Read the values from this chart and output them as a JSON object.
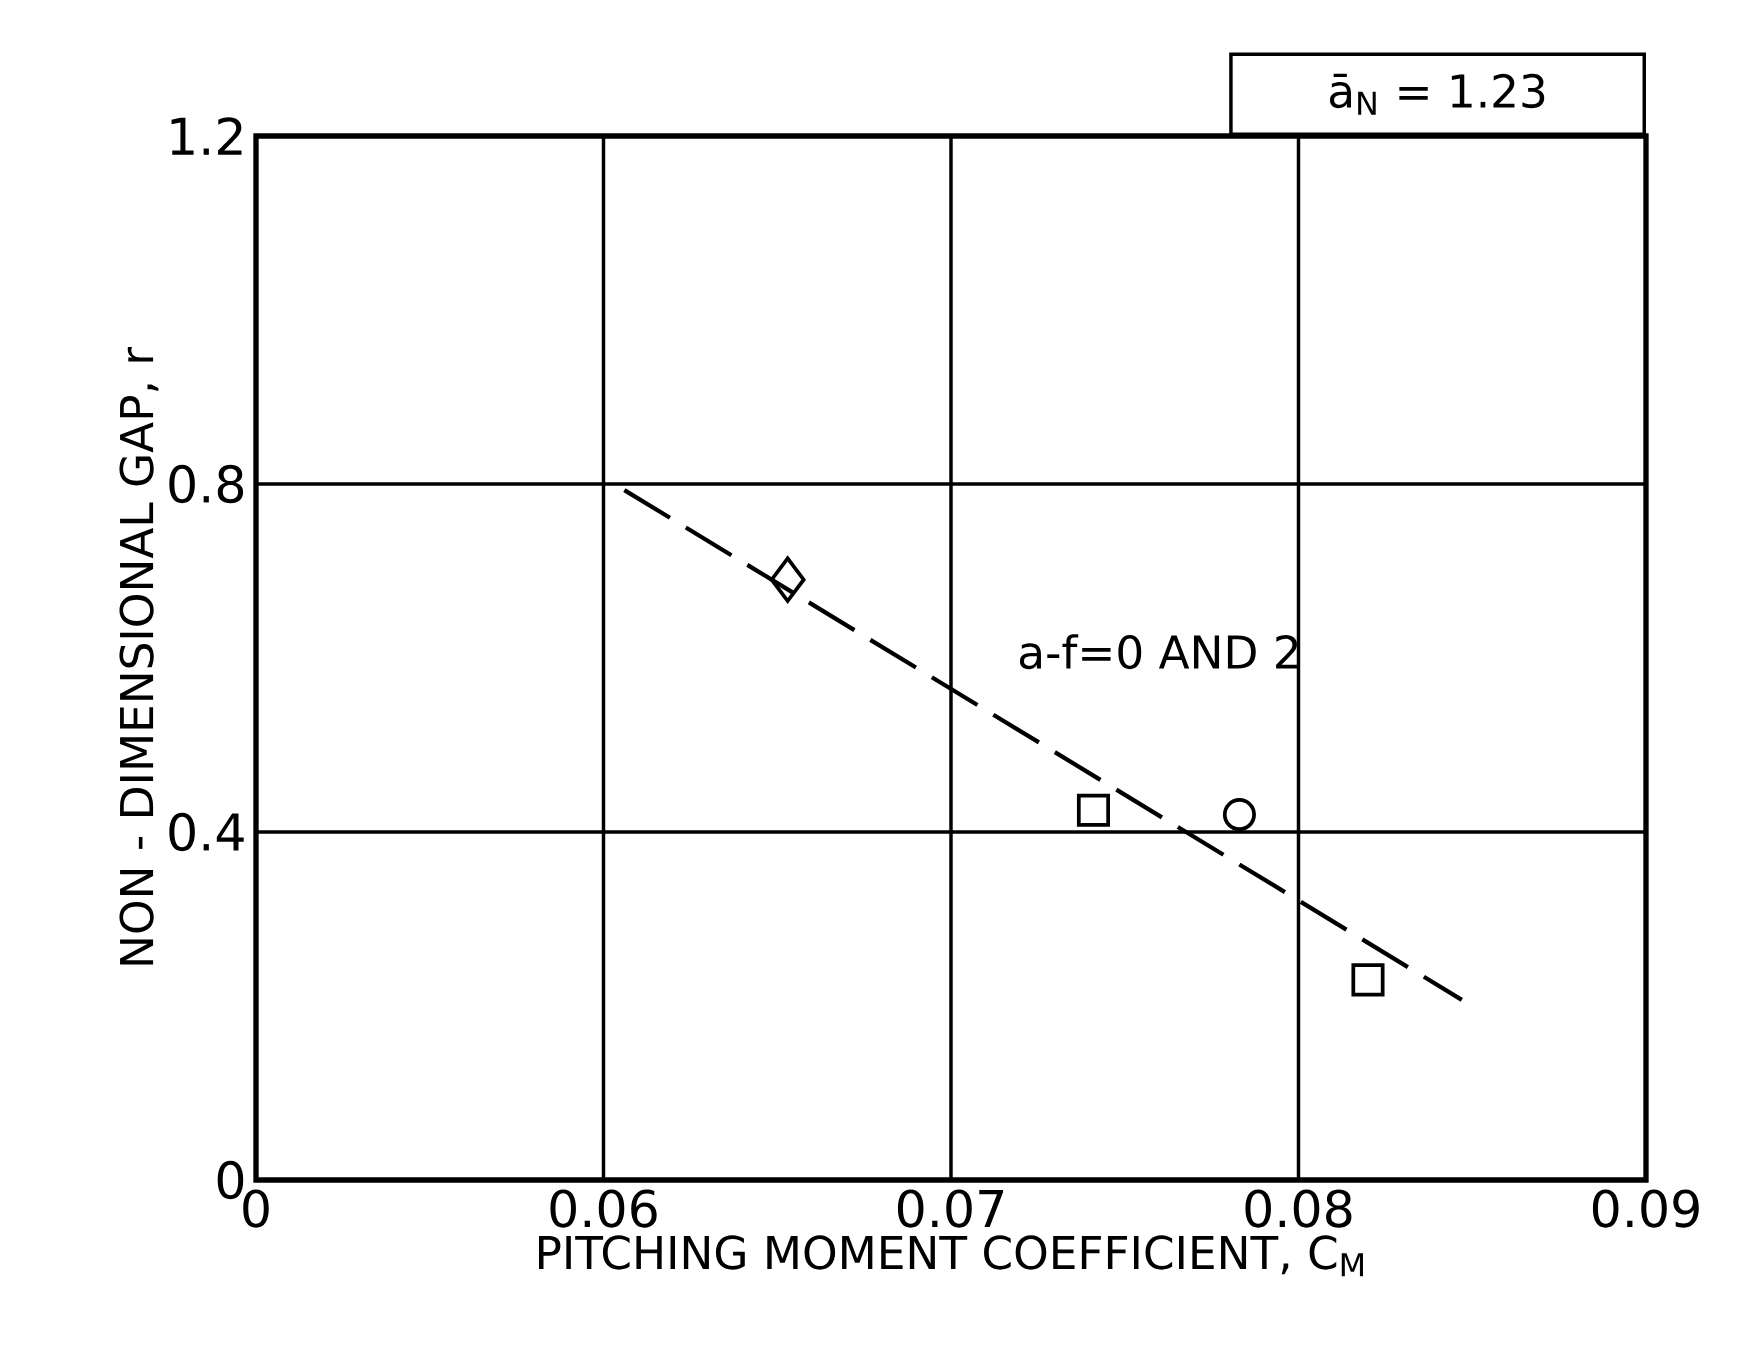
{
  "chart_data": {
    "type": "scatter",
    "xlabel": "PITCHING MOMENT COEFFICIENT, C$_{M}$",
    "ylabel": "NON - DIMENSIONAL GAP, r",
    "xlim": [
      0.05,
      0.09
    ],
    "xticks": [
      {
        "value": 0.05,
        "label": "0"
      },
      0.06,
      0.07,
      0.08,
      0.09
    ],
    "ylim": [
      0,
      1.2
    ],
    "yticks": [
      0,
      0.4,
      0.8,
      1.2
    ],
    "grid": true,
    "series": [
      {
        "type": "line",
        "line_style": "dashed",
        "marker": "none",
        "color": "#000000",
        "x": [
          0.0606,
          0.0847
        ],
        "values": [
          0.793,
          0.207
        ]
      },
      {
        "marker": "diamond",
        "color": "#000000",
        "x": [
          0.0653
        ],
        "values": [
          0.69
        ]
      },
      {
        "marker": "square",
        "color": "#000000",
        "x": [
          0.0741,
          0.082
        ],
        "values": [
          0.425,
          0.23
        ]
      },
      {
        "marker": "circle",
        "color": "#000000",
        "x": [
          0.0783
        ],
        "values": [
          0.42
        ]
      }
    ],
    "annotations": [
      "a-f=0 AND 2",
      "ā$_{N}$ = 1.23"
    ]
  }
}
